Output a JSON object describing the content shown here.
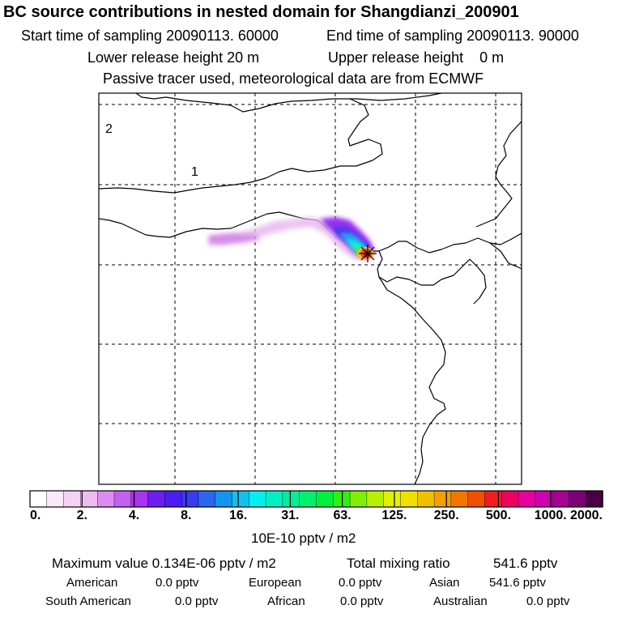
{
  "header": {
    "title": "BC  source contributions in nested domain for Shangdianzi_200901",
    "start_label": "Start time of sampling 20090113. 60000",
    "end_label": "End time of sampling 20090113. 90000",
    "lower_label": "Lower release height   20 m",
    "upper_label": "Upper release height    0 m",
    "note": "Passive tracer used, meteorological data are from ECMWF"
  },
  "map": {
    "region_labels": [
      "2",
      "1"
    ],
    "receptor": "Shangdianzi"
  },
  "colorbar": {
    "tick_labels": [
      "0.",
      "2.",
      "4.",
      "8.",
      "16.",
      "31.",
      "63.",
      "125.",
      "250.",
      "500.",
      "1000.",
      "2000."
    ],
    "unit_label": "10E-10 pptv / m2",
    "colors": [
      "#ffffff",
      "#fbe9fb",
      "#f6d2f6",
      "#f0bcf0",
      "#dc8ef0",
      "#c460f0",
      "#aa32f0",
      "#6a1ef0",
      "#4a1ef0",
      "#3a3af0",
      "#2a66f0",
      "#1494f0",
      "#10c2f0",
      "#00f0f0",
      "#00f0c6",
      "#00f09a",
      "#00f070",
      "#00f040",
      "#30f010",
      "#80f000",
      "#b8f000",
      "#e0f000",
      "#f0e000",
      "#f0c000",
      "#f0a000",
      "#f07800",
      "#f05000",
      "#f01e1e",
      "#f00060",
      "#e800a0",
      "#d000b0",
      "#a80096",
      "#7c0078",
      "#4a0044"
    ]
  },
  "summary": {
    "max_label": "Maximum value  0.134E-06 pptv / m2",
    "total_label": "Total mixing ratio",
    "total_value": "541.6 pptv",
    "regions": [
      {
        "label": "American",
        "value": "0.0 pptv"
      },
      {
        "label": "European",
        "value": "0.0 pptv"
      },
      {
        "label": "Asian",
        "value": "541.6 pptv"
      },
      {
        "label": "South American",
        "value": "0.0 pptv"
      },
      {
        "label": "African",
        "value": "0.0 pptv"
      },
      {
        "label": "Australian",
        "value": "0.0 pptv"
      }
    ]
  }
}
